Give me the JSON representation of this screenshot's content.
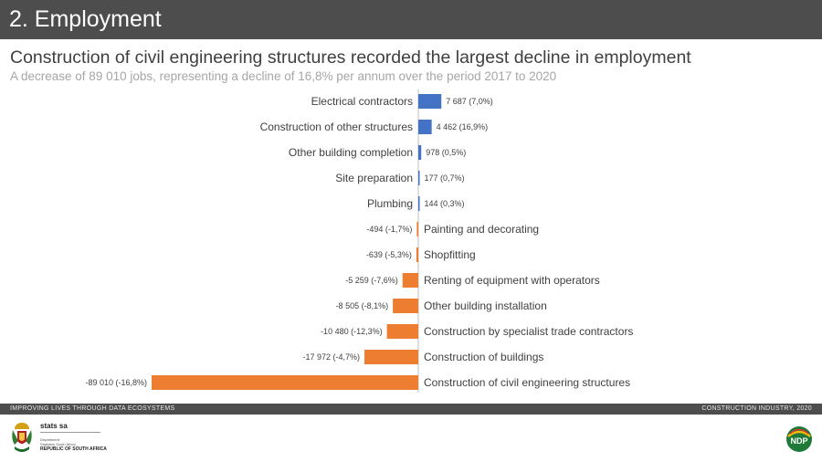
{
  "header": {
    "title": "2. Employment"
  },
  "headline": "Construction of civil engineering structures recorded the largest decline in employment",
  "subheadline": "A decrease of 89 010 jobs, representing a decline of 16,8% per annum over the period 2017 to 2020",
  "chart_data": {
    "type": "bar",
    "orientation": "horizontal",
    "title": "",
    "xlabel": "",
    "ylabel": "",
    "xlim": [
      -89010,
      7687
    ],
    "grid": false,
    "colors": {
      "positive": "#4472c4",
      "negative": "#ed7d31"
    },
    "categories": [
      "Electrical contractors",
      "Construction of other structures",
      "Other building completion",
      "Site preparation",
      "Plumbing",
      "Painting and decorating",
      "Shopfitting",
      "Renting of equipment with operators",
      "Other building installation",
      "Construction by specialist trade contractors",
      "Construction of buildings",
      "Construction of civil engineering structures"
    ],
    "values": [
      7687,
      4462,
      978,
      177,
      144,
      -494,
      -639,
      -5259,
      -8505,
      -10480,
      -17972,
      -89010
    ],
    "data_labels": [
      "7 687 (7,0%)",
      "4 462 (16,9%)",
      "978 (0,5%)",
      "177 (0,7%)",
      "144 (0,3%)",
      "-494 (-1,7%)",
      "-639 (-5,3%)",
      "-5 259 (-7,6%)",
      "-8 505 (-8,1%)",
      "-10 480 (-12,3%)",
      "-17 972 (-4,7%)",
      "-89 010 (-16,8%)"
    ]
  },
  "footer": {
    "left_text": "IMPROVING LIVES THROUGH DATA ECOSYSTEMS",
    "right_text": "CONSTRUCTION INDUSTRY, 2020"
  },
  "logos": {
    "stats_name": "stats sa",
    "department_line1": "Department:",
    "department_line2": "Statistics South Africa",
    "country": "REPUBLIC OF SOUTH AFRICA",
    "ndp_text": "NDP"
  }
}
